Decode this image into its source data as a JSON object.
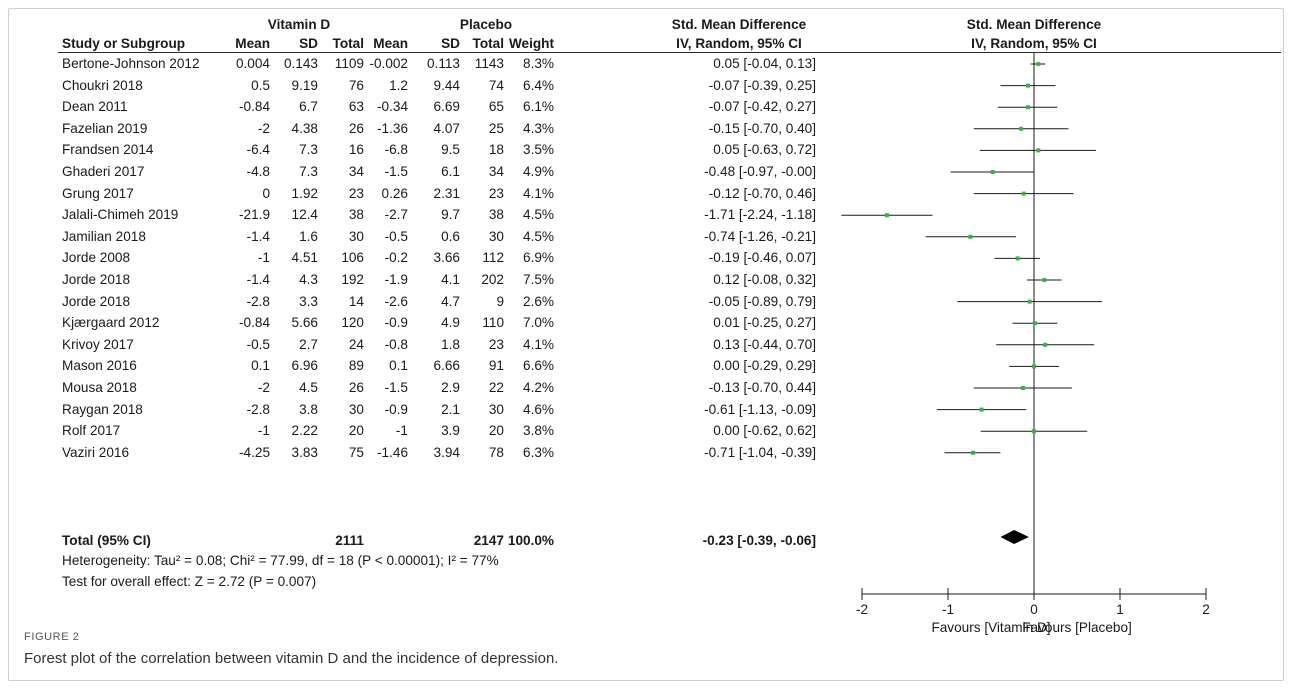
{
  "headers": {
    "group1": "Vitamin D",
    "group2": "Placebo",
    "effect_col": "Std. Mean Difference",
    "effect_sub": "IV, Random, 95% CI",
    "plot_col": "Std. Mean Difference",
    "plot_sub": "IV, Random, 95% CI",
    "study": "Study or Subgroup",
    "mean": "Mean",
    "sd": "SD",
    "total": "Total",
    "weight": "Weight"
  },
  "total_row": {
    "label": "Total (95% CI)",
    "t1": "2111",
    "t2": "2147",
    "weight": "100.0%",
    "ci": "-0.23 [-0.39, -0.06]"
  },
  "heterogeneity": "Heterogeneity: Tau² = 0.08; Chi² = 77.99, df = 18 (P < 0.00001); I² = 77%",
  "overall_effect": "Test for overall effect: Z = 2.72 (P = 0.007)",
  "caption": {
    "label": "FIGURE 2",
    "text": "Forest plot of the correlation between vitamin D and the incidence of depression."
  },
  "colors": {
    "point": "#3cb043",
    "line": "#1a1a1a",
    "diamond": "#000000"
  },
  "chart_data": {
    "type": "scatter",
    "xlim": [
      -2,
      2
    ],
    "xticks": [
      "-2",
      "-1",
      "0",
      "1",
      "2"
    ],
    "xlabel_left": "Favours [Vitamin D]",
    "xlabel_right": "Favours [Placebo]",
    "studies": [
      {
        "name": "Bertone-Johnson 2012",
        "m1": "0.004",
        "sd1": "0.143",
        "n1": "1109",
        "m2": "-0.002",
        "sd2": "0.113",
        "n2": "1143",
        "weight": "8.3%",
        "ci": "0.05 [-0.04, 0.13]",
        "est": 0.05,
        "lo": -0.04,
        "hi": 0.13
      },
      {
        "name": "Choukri 2018",
        "m1": "0.5",
        "sd1": "9.19",
        "n1": "76",
        "m2": "1.2",
        "sd2": "9.44",
        "n2": "74",
        "weight": "6.4%",
        "ci": "-0.07 [-0.39, 0.25]",
        "est": -0.07,
        "lo": -0.39,
        "hi": 0.25
      },
      {
        "name": "Dean 2011",
        "m1": "-0.84",
        "sd1": "6.7",
        "n1": "63",
        "m2": "-0.34",
        "sd2": "6.69",
        "n2": "65",
        "weight": "6.1%",
        "ci": "-0.07 [-0.42, 0.27]",
        "est": -0.07,
        "lo": -0.42,
        "hi": 0.27
      },
      {
        "name": "Fazelian 2019",
        "m1": "-2",
        "sd1": "4.38",
        "n1": "26",
        "m2": "-1.36",
        "sd2": "4.07",
        "n2": "25",
        "weight": "4.3%",
        "ci": "-0.15 [-0.70, 0.40]",
        "est": -0.15,
        "lo": -0.7,
        "hi": 0.4
      },
      {
        "name": "Frandsen 2014",
        "m1": "-6.4",
        "sd1": "7.3",
        "n1": "16",
        "m2": "-6.8",
        "sd2": "9.5",
        "n2": "18",
        "weight": "3.5%",
        "ci": "0.05 [-0.63, 0.72]",
        "est": 0.05,
        "lo": -0.63,
        "hi": 0.72
      },
      {
        "name": "Ghaderi 2017",
        "m1": "-4.8",
        "sd1": "7.3",
        "n1": "34",
        "m2": "-1.5",
        "sd2": "6.1",
        "n2": "34",
        "weight": "4.9%",
        "ci": "-0.48 [-0.97, -0.00]",
        "est": -0.48,
        "lo": -0.97,
        "hi": 0.0
      },
      {
        "name": "Grung 2017",
        "m1": "0",
        "sd1": "1.92",
        "n1": "23",
        "m2": "0.26",
        "sd2": "2.31",
        "n2": "23",
        "weight": "4.1%",
        "ci": "-0.12 [-0.70, 0.46]",
        "est": -0.12,
        "lo": -0.7,
        "hi": 0.46
      },
      {
        "name": "Jalali-Chimeh 2019",
        "m1": "-21.9",
        "sd1": "12.4",
        "n1": "38",
        "m2": "-2.7",
        "sd2": "9.7",
        "n2": "38",
        "weight": "4.5%",
        "ci": "-1.71 [-2.24, -1.18]",
        "est": -1.71,
        "lo": -2.24,
        "hi": -1.18
      },
      {
        "name": "Jamilian 2018",
        "m1": "-1.4",
        "sd1": "1.6",
        "n1": "30",
        "m2": "-0.5",
        "sd2": "0.6",
        "n2": "30",
        "weight": "4.5%",
        "ci": "-0.74 [-1.26, -0.21]",
        "est": -0.74,
        "lo": -1.26,
        "hi": -0.21
      },
      {
        "name": "Jorde 2008",
        "m1": "-1",
        "sd1": "4.51",
        "n1": "106",
        "m2": "-0.2",
        "sd2": "3.66",
        "n2": "112",
        "weight": "6.9%",
        "ci": "-0.19 [-0.46, 0.07]",
        "est": -0.19,
        "lo": -0.46,
        "hi": 0.07
      },
      {
        "name": "Jorde 2018",
        "m1": "-1.4",
        "sd1": "4.3",
        "n1": "192",
        "m2": "-1.9",
        "sd2": "4.1",
        "n2": "202",
        "weight": "7.5%",
        "ci": "0.12 [-0.08, 0.32]",
        "est": 0.12,
        "lo": -0.08,
        "hi": 0.32
      },
      {
        "name": "Jorde 2018",
        "m1": "-2.8",
        "sd1": "3.3",
        "n1": "14",
        "m2": "-2.6",
        "sd2": "4.7",
        "n2": "9",
        "weight": "2.6%",
        "ci": "-0.05 [-0.89, 0.79]",
        "est": -0.05,
        "lo": -0.89,
        "hi": 0.79
      },
      {
        "name": "Kjærgaard 2012",
        "m1": "-0.84",
        "sd1": "5.66",
        "n1": "120",
        "m2": "-0.9",
        "sd2": "4.9",
        "n2": "110",
        "weight": "7.0%",
        "ci": "0.01 [-0.25, 0.27]",
        "est": 0.01,
        "lo": -0.25,
        "hi": 0.27
      },
      {
        "name": "Krivoy 2017",
        "m1": "-0.5",
        "sd1": "2.7",
        "n1": "24",
        "m2": "-0.8",
        "sd2": "1.8",
        "n2": "23",
        "weight": "4.1%",
        "ci": "0.13 [-0.44, 0.70]",
        "est": 0.13,
        "lo": -0.44,
        "hi": 0.7
      },
      {
        "name": "Mason 2016",
        "m1": "0.1",
        "sd1": "6.96",
        "n1": "89",
        "m2": "0.1",
        "sd2": "6.66",
        "n2": "91",
        "weight": "6.6%",
        "ci": "0.00 [-0.29, 0.29]",
        "est": 0.0,
        "lo": -0.29,
        "hi": 0.29
      },
      {
        "name": "Mousa 2018",
        "m1": "-2",
        "sd1": "4.5",
        "n1": "26",
        "m2": "-1.5",
        "sd2": "2.9",
        "n2": "22",
        "weight": "4.2%",
        "ci": "-0.13 [-0.70, 0.44]",
        "est": -0.13,
        "lo": -0.7,
        "hi": 0.44
      },
      {
        "name": "Raygan 2018",
        "m1": "-2.8",
        "sd1": "3.8",
        "n1": "30",
        "m2": "-0.9",
        "sd2": "2.1",
        "n2": "30",
        "weight": "4.6%",
        "ci": "-0.61 [-1.13, -0.09]",
        "est": -0.61,
        "lo": -1.13,
        "hi": -0.09
      },
      {
        "name": "Rolf 2017",
        "m1": "-1",
        "sd1": "2.22",
        "n1": "20",
        "m2": "-1",
        "sd2": "3.9",
        "n2": "20",
        "weight": "3.8%",
        "ci": "0.00 [-0.62, 0.62]",
        "est": 0.0,
        "lo": -0.62,
        "hi": 0.62
      },
      {
        "name": "Vaziri 2016",
        "m1": "-4.25",
        "sd1": "3.83",
        "n1": "75",
        "m2": "-1.46",
        "sd2": "3.94",
        "n2": "78",
        "weight": "6.3%",
        "ci": "-0.71 [-1.04, -0.39]",
        "est": -0.71,
        "lo": -1.04,
        "hi": -0.39
      }
    ],
    "pooled": {
      "est": -0.23,
      "lo": -0.39,
      "hi": -0.06
    }
  }
}
